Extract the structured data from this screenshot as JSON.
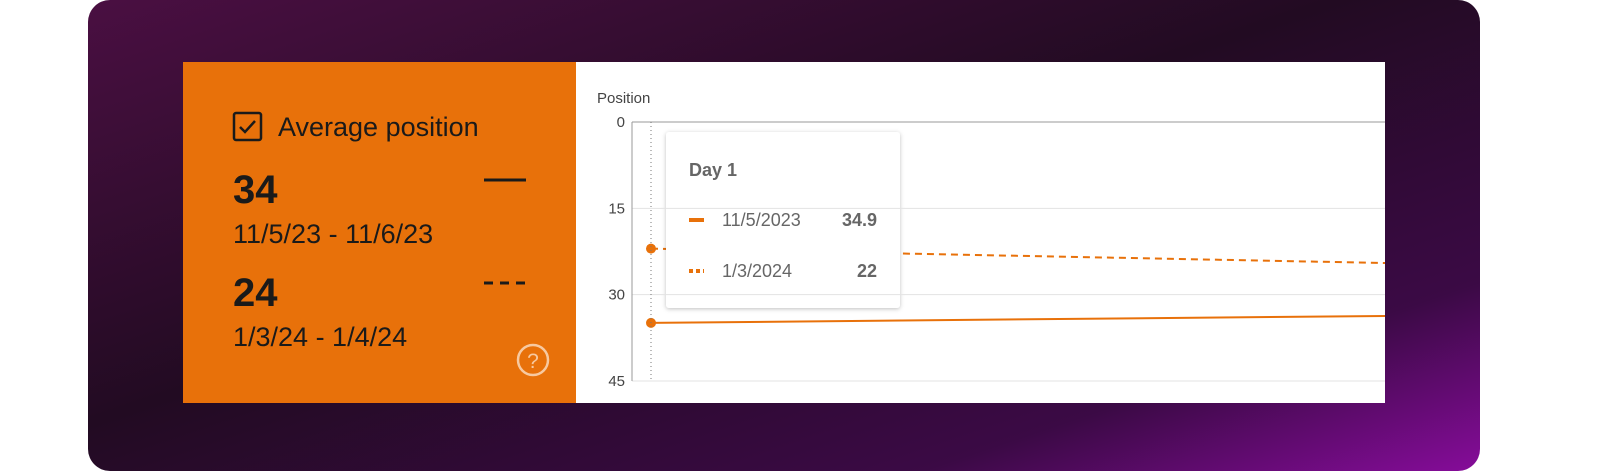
{
  "card": {
    "label": "Average position",
    "periods": [
      {
        "value": 34,
        "range": "11/5/23 - 11/6/23"
      },
      {
        "value": 24,
        "range": "1/3/24 - 1/4/24"
      }
    ]
  },
  "chart_data": {
    "type": "line",
    "y_label": "Position",
    "categories": [
      "Day 1",
      null
    ],
    "series": [
      {
        "name": "11/5/2023",
        "color": "#e8710a",
        "dash": "solid",
        "values": [
          34.9,
          33.7
        ]
      },
      {
        "name": "1/3/2024",
        "color": "#e8710a",
        "dash": "dashed",
        "values": [
          22,
          24.5
        ]
      }
    ],
    "ylim": [
      0,
      45
    ],
    "yticks": [
      0,
      15,
      30,
      45
    ],
    "y_inverted": true,
    "grid": true,
    "tooltip_index": 0
  }
}
